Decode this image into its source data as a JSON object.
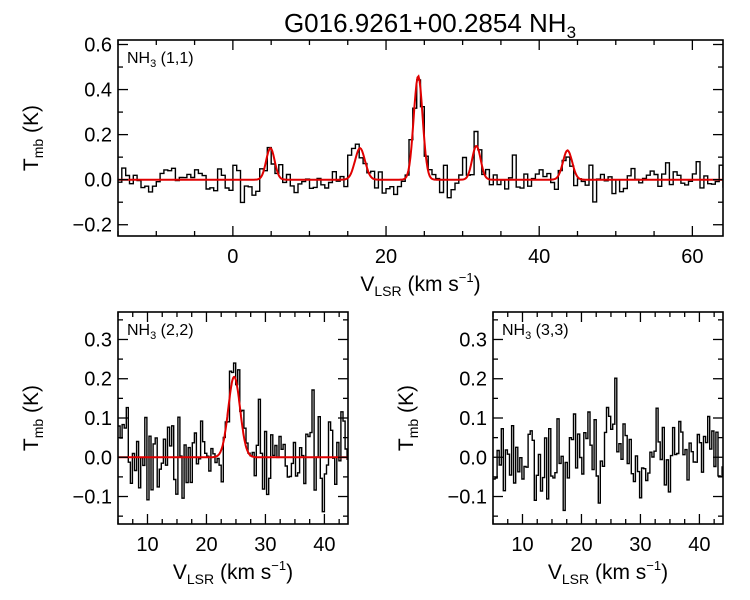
{
  "title": {
    "main": "G016.9261+00.2854 NH",
    "sub": "3"
  },
  "colors": {
    "spectrum": "#000000",
    "fit": "#e00000",
    "axes": "#000000"
  },
  "chart_data": [
    {
      "type": "line",
      "panel": "top",
      "label": {
        "main": "NH",
        "sub": "3",
        "rest": " (1,1)"
      },
      "xlim": [
        -15,
        64
      ],
      "ylim": [
        -0.25,
        0.62
      ],
      "xticks": [
        0,
        20,
        40,
        60
      ],
      "xtick_labels": [
        "0",
        "20",
        "40",
        "60"
      ],
      "yticks": [
        -0.2,
        0.0,
        0.2,
        0.4,
        0.6
      ],
      "ytick_labels": [
        "−0.2",
        "0.0",
        "0.2",
        "0.4",
        "0.6"
      ],
      "xlabel": {
        "main": "V",
        "sub": "LSR",
        "rest": " (km s",
        "sup": "−1",
        "end": ")"
      },
      "ylabel": {
        "main": "T",
        "sub": "mb",
        "rest": " (K)"
      },
      "spectrum": {
        "x_start": -15,
        "x_step": 0.5,
        "noise": 0.04,
        "seed": 11,
        "components": [
          {
            "center": 4.9,
            "amp": 0.14,
            "sigma": 0.55
          },
          {
            "center": 16.6,
            "amp": 0.14,
            "sigma": 0.65
          },
          {
            "center": 24.2,
            "amp": 0.46,
            "sigma": 0.58
          },
          {
            "center": 31.8,
            "amp": 0.15,
            "sigma": 0.55
          },
          {
            "center": 43.7,
            "amp": 0.13,
            "sigma": 0.6
          }
        ],
        "fit": true
      }
    },
    {
      "type": "line",
      "panel": "bottom-left",
      "label": {
        "main": "NH",
        "sub": "3",
        "rest": " (2,2)"
      },
      "xlim": [
        5,
        44
      ],
      "ylim": [
        -0.17,
        0.37
      ],
      "xticks": [
        10,
        20,
        30,
        40
      ],
      "xtick_labels": [
        "10",
        "20",
        "30",
        "40"
      ],
      "yticks": [
        -0.1,
        0.0,
        0.1,
        0.2,
        0.3
      ],
      "ytick_labels": [
        "−0.1",
        "0.0",
        "0.1",
        "0.2",
        "0.3"
      ],
      "xlabel": {
        "main": "V",
        "sub": "LSR",
        "rest": " (km s",
        "sup": "−1",
        "end": ")"
      },
      "ylabel": {
        "main": "T",
        "sub": "mb",
        "rest": " (K)"
      },
      "spectrum": {
        "x_start": 5,
        "x_step": 0.35,
        "noise": 0.055,
        "seed": 7,
        "components": [
          {
            "center": 24.7,
            "amp": 0.205,
            "sigma": 1.0
          }
        ],
        "fit": true
      }
    },
    {
      "type": "line",
      "panel": "bottom-right",
      "label": {
        "main": "NH",
        "sub": "3",
        "rest": " (3,3)"
      },
      "xlim": [
        5,
        44
      ],
      "ylim": [
        -0.17,
        0.37
      ],
      "xticks": [
        10,
        20,
        30,
        40
      ],
      "xtick_labels": [
        "10",
        "20",
        "30",
        "40"
      ],
      "yticks": [
        -0.1,
        0.0,
        0.1,
        0.2,
        0.3
      ],
      "ytick_labels": [
        "−0.1",
        "0.0",
        "0.1",
        "0.2",
        "0.3"
      ],
      "xlabel": {
        "main": "V",
        "sub": "LSR",
        "rest": " (km s",
        "sup": "−1",
        "end": ")"
      },
      "ylabel": {
        "main": "T",
        "sub": "mb",
        "rest": " (K)"
      },
      "spectrum": {
        "x_start": 5,
        "x_step": 0.35,
        "noise": 0.05,
        "seed": 23,
        "components": [
          {
            "center": 25.5,
            "amp": 0.09,
            "sigma": 1.2
          }
        ],
        "fit": false
      }
    }
  ]
}
